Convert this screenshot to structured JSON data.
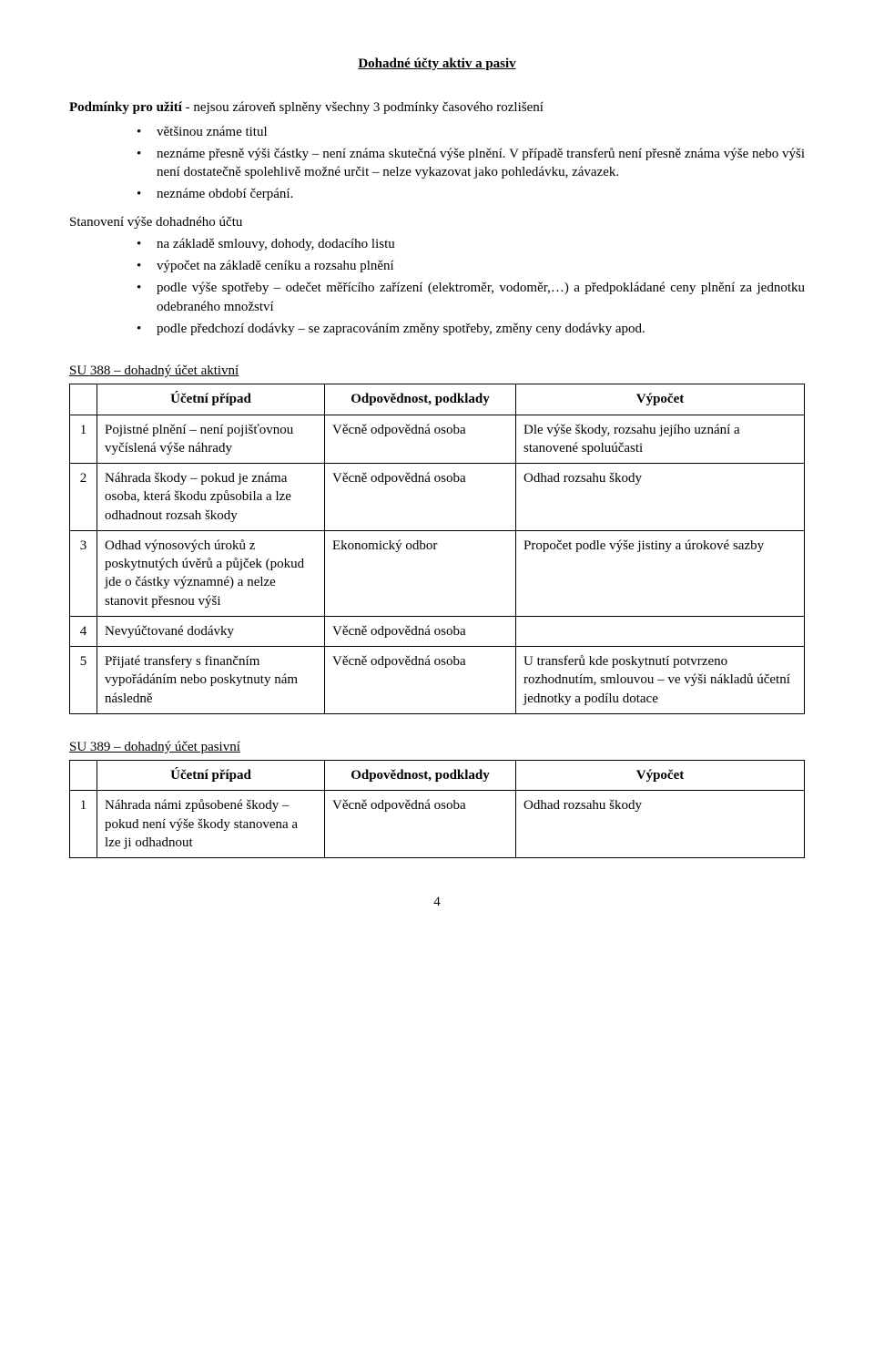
{
  "title": "Dohadné účty aktiv a pasiv",
  "intro": "Podmínky pro užití - nejsou zároveň splněny všechny 3 podmínky časového rozlišení",
  "intro_label": "Podmínky pro užití",
  "intro_rest": " - nejsou zároveň splněny všechny 3 podmínky časového rozlišení",
  "bullets1": {
    "b0": "většinou známe titul",
    "b1": "neznáme přesně výši částky – není známa skutečná výše plnění. V případě transferů není přesně známa výše nebo výši není dostatečně spolehlivě možné určit – nelze vykazovat jako pohledávku, závazek.",
    "b2": "neznáme období čerpání."
  },
  "subhead": "Stanovení výše dohadného účtu",
  "bullets2": {
    "b0": "na základě smlouvy, dohody, dodacího listu",
    "b1": "výpočet na základě ceníku a rozsahu plnění",
    "b2": "podle výše spotřeby – odečet měřícího zařízení (elektroměr, vodoměr,…) a předpokládané ceny plnění za jednotku odebraného množství",
    "b3": "podle předchozí dodávky – se zapracováním změny spotřeby, změny ceny dodávky apod."
  },
  "table1": {
    "title": "SU 388 – dohadný účet aktivní",
    "headers": {
      "h1": "Účetní případ",
      "h2": "Odpovědnost, podklady",
      "h3": "Výpočet"
    },
    "rows": {
      "r1": {
        "n": "1",
        "c": "Pojistné plnění – není pojišťovnou vyčíslená výše náhrady",
        "r": "Věcně odpovědná osoba",
        "v": "Dle výše škody, rozsahu jejího uznání a stanovené spoluúčasti"
      },
      "r2": {
        "n": "2",
        "c": "Náhrada škody – pokud je známa osoba, která škodu způsobila a lze odhadnout rozsah škody",
        "r": "Věcně odpovědná osoba",
        "v": "Odhad rozsahu škody"
      },
      "r3": {
        "n": "3",
        "c": "Odhad výnosových úroků z poskytnutých úvěrů a půjček (pokud jde o částky významné) a nelze stanovit přesnou výši",
        "r": "Ekonomický odbor",
        "v": "Propočet podle výše jistiny a úrokové sazby"
      },
      "r4": {
        "n": "4",
        "c": "Nevyúčtované dodávky",
        "r": "Věcně odpovědná osoba",
        "v": ""
      },
      "r5": {
        "n": "5",
        "c": "Přijaté transfery s finančním vypořádáním nebo poskytnuty nám následně",
        "r": "Věcně odpovědná osoba",
        "v": "U transferů kde poskytnutí potvrzeno rozhodnutím, smlouvou – ve výši nákladů účetní jednotky a podílu dotace"
      }
    }
  },
  "table2": {
    "title": "SU 389 – dohadný účet pasivní",
    "headers": {
      "h1": "Účetní případ",
      "h2": "Odpovědnost, podklady",
      "h3": "Výpočet"
    },
    "rows": {
      "r1": {
        "n": "1",
        "c": "Náhrada námi způsobené škody – pokud není výše škody stanovena a lze ji odhadnout",
        "r": "Věcně odpovědná osoba",
        "v": "Odhad rozsahu škody"
      }
    }
  },
  "page_number": "4"
}
